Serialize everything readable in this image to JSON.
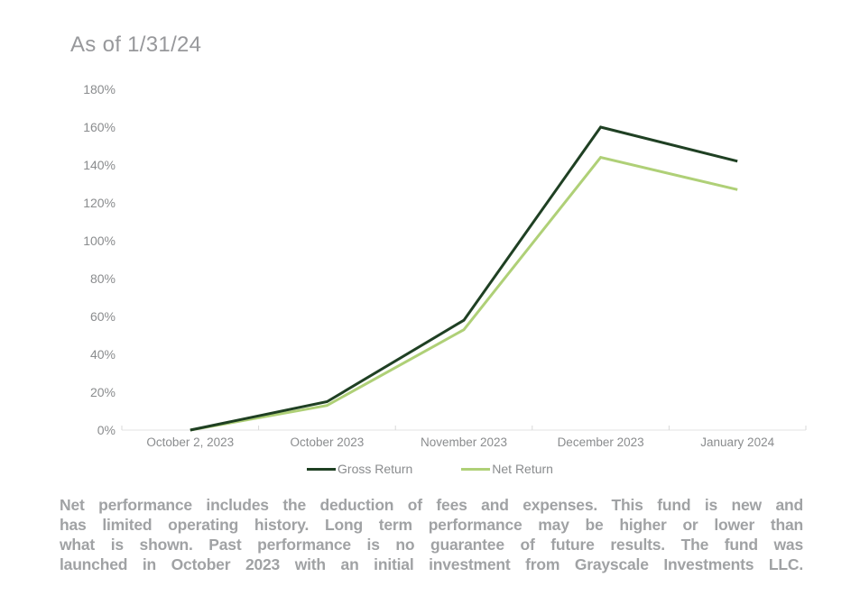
{
  "title": "As of 1/31/24",
  "chart_data": {
    "type": "line",
    "categories": [
      "October 2, 2023",
      "October 2023",
      "November 2023",
      "December 2023",
      "January 2024"
    ],
    "series": [
      {
        "name": "Gross Return",
        "color": "#1F4023",
        "values": [
          0,
          15,
          58,
          160,
          142
        ]
      },
      {
        "name": "Net Return",
        "color": "#AFD077",
        "values": [
          0,
          13,
          53,
          144,
          127
        ]
      }
    ],
    "title": "",
    "xlabel": "",
    "ylabel": "",
    "ylim": [
      0,
      180
    ],
    "ytick_step": 20,
    "ytick_suffix": "%",
    "grid": false,
    "legend_position": "bottom",
    "axis_color": "#e3e3e3",
    "tick_color": "#d9d9d9",
    "label_color": "#8a8c8e"
  },
  "footer": {
    "disclaimer_lines": [
      "Net performance includes the deduction of fees and expenses. This fund is new and",
      "has limited operating history. Long term performance may be higher or lower than",
      "what is shown. Past performance is no guarantee of future results. The fund was",
      "launched in October 2023 with an initial investment from Grayscale Investments LLC."
    ]
  }
}
